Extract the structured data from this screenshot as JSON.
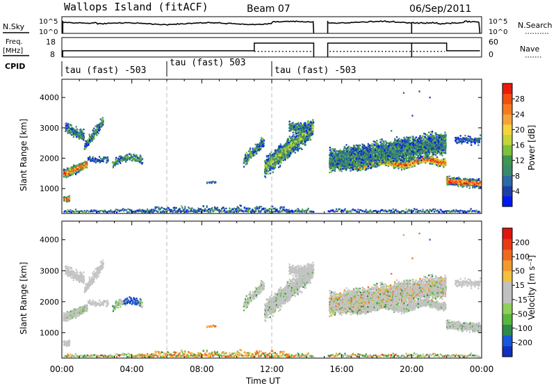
{
  "header": {
    "station": "Wallops Island (fitACF)",
    "beam": "Beam 07",
    "date": "06/Sep/2011"
  },
  "noise_panel": {
    "left_label": "N.Sky",
    "right_label": "N.Search",
    "tick_top": "10^5",
    "tick_bottom": "10^0"
  },
  "freq_panel": {
    "left_label_line1": "Freq.",
    "left_label_line2": "[MHz]",
    "left_ticks": [
      "18",
      "8"
    ],
    "right_label": "Nave",
    "right_ticks": [
      "60",
      "0"
    ]
  },
  "cpid": {
    "label": "CPID",
    "segments": [
      {
        "start_hour": 0.0,
        "text": "tau (fast) -503"
      },
      {
        "start_hour": 6.0,
        "text": "tau (fast) 503"
      },
      {
        "start_hour": 12.0,
        "text": "tau (fast) -503"
      }
    ]
  },
  "chart_data": [
    {
      "type": "heatmap",
      "panel": "power",
      "xlabel": "",
      "ylabel": "Slant Range [km]",
      "xlim_hours": [
        0,
        24
      ],
      "ylim": [
        180,
        4600
      ],
      "yticks": [
        "1000",
        "2000",
        "3000",
        "4000"
      ],
      "colorbar": {
        "label": "Power [dB]",
        "ticks": [
          "4",
          "8",
          "12",
          "16",
          "20",
          "24",
          "28"
        ],
        "colors": [
          "#0018f5",
          "#1d3fa8",
          "#2b6aa6",
          "#3a8a6b",
          "#3e9650",
          "#7cc23c",
          "#c4d43a",
          "#f4d43a",
          "#f6a43a",
          "#f67a20",
          "#f24d12",
          "#e81c0c"
        ]
      }
    },
    {
      "type": "heatmap",
      "panel": "velocity",
      "xlabel": "Time UT",
      "ylabel": "Slant Range [km]",
      "xlim_hours": [
        0,
        24
      ],
      "ylim": [
        180,
        4600
      ],
      "yticks": [
        "1000",
        "2000",
        "3000",
        "4000"
      ],
      "xticks": [
        "00:00",
        "04:00",
        "08:00",
        "12:00",
        "16:00",
        "20:00",
        "00:00"
      ],
      "colorbar": {
        "label": "Velocity [m s⁻¹]",
        "ticks": [
          "200",
          "100",
          "50",
          "15",
          "-15",
          "-50",
          "-100",
          "-200"
        ],
        "colors": [
          "#1030c0",
          "#1858d8",
          "#2f8a4a",
          "#58b83c",
          "#8ed05a",
          "#c0c0c0",
          "#c0c0c0",
          "#f4c040",
          "#f29a30",
          "#ef6a20",
          "#e83a14",
          "#e01410"
        ]
      }
    }
  ]
}
